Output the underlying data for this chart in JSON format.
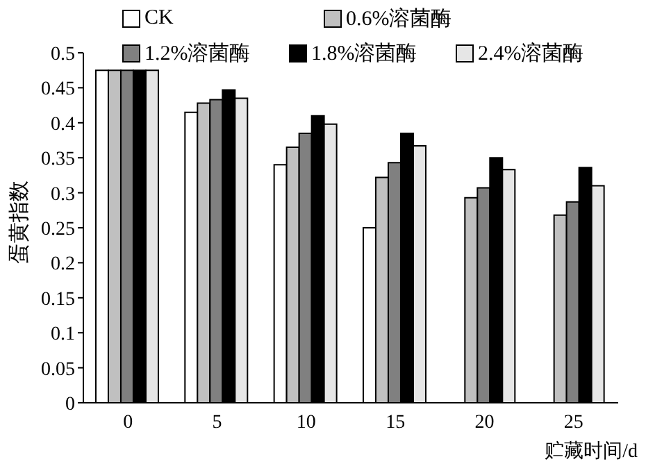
{
  "chart_data": {
    "type": "bar",
    "xlabel": "贮藏时间/d",
    "ylabel": "蛋黄指数",
    "categories": [
      "0",
      "5",
      "10",
      "15",
      "20",
      "25"
    ],
    "series": [
      {
        "name": "CK",
        "color": "#ffffff",
        "values": [
          0.475,
          0.415,
          0.34,
          0.25,
          null,
          null
        ]
      },
      {
        "name": "0.6%溶菌酶",
        "color": "#c0c0c0",
        "values": [
          0.475,
          0.428,
          0.365,
          0.322,
          0.293,
          0.268
        ]
      },
      {
        "name": "1.2%溶菌酶",
        "color": "#808080",
        "values": [
          0.475,
          0.433,
          0.385,
          0.343,
          0.307,
          0.287
        ]
      },
      {
        "name": "1.8%溶菌酶",
        "color": "#000000",
        "values": [
          0.475,
          0.447,
          0.41,
          0.385,
          0.35,
          0.336
        ]
      },
      {
        "name": "2.4%溶菌酶",
        "color": "#e6e6e6",
        "values": [
          0.475,
          0.435,
          0.398,
          0.367,
          0.333,
          0.31
        ]
      }
    ],
    "ylim": [
      0,
      0.5
    ],
    "yticks": [
      0,
      0.05,
      0.1,
      0.15,
      0.2,
      0.25,
      0.3,
      0.35,
      0.4,
      0.45,
      0.5
    ],
    "grid": false,
    "legend": "top"
  }
}
